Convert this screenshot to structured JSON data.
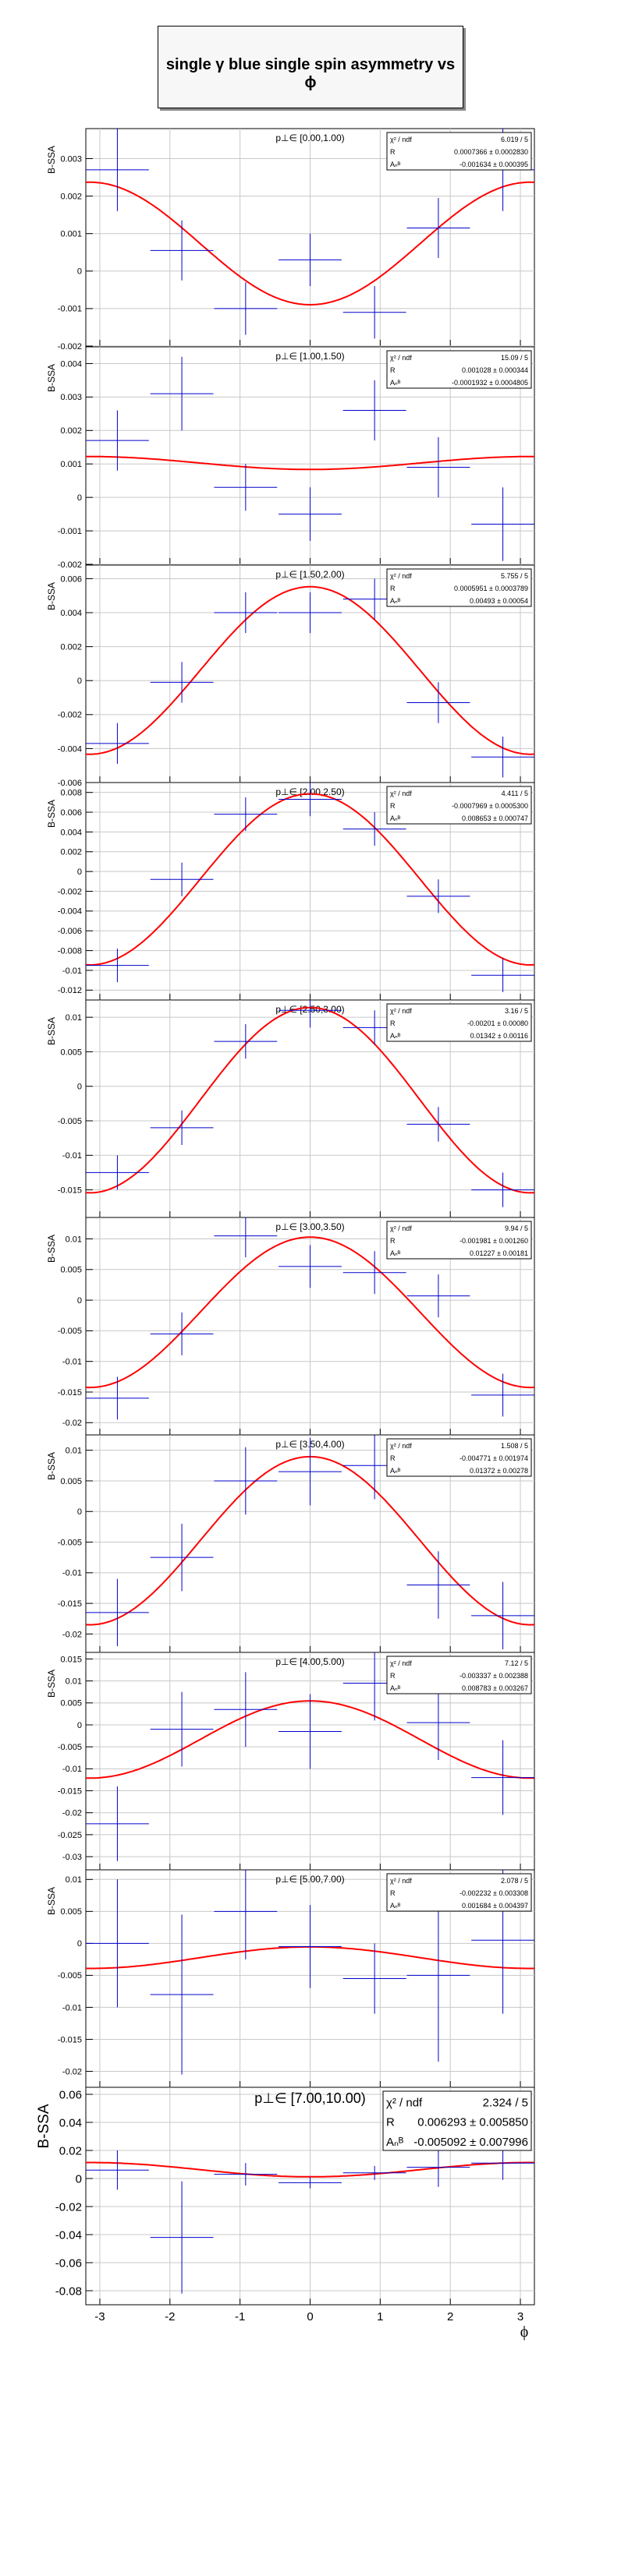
{
  "title": "single γ blue single spin asymmetry vs ϕ",
  "ylabel": "B-SSA",
  "xlabel": "ϕ",
  "stat_label_chi2": "χ² / ndf",
  "stat_label_R": "R",
  "stat_label_A": "Aₙᴮ",
  "x_ticks": [
    "-3",
    "-2",
    "-1",
    "0",
    "1",
    "2",
    "3"
  ],
  "xlim": [
    -3.2,
    3.2
  ],
  "x_centers": [
    -2.75,
    -1.83,
    -0.92,
    0.0,
    0.92,
    1.83,
    2.75
  ],
  "x_halfwidth": 0.45,
  "colors": {
    "fit": "#ff0000",
    "points": "#0000cc",
    "grid": "#c8c8c8",
    "axis": "#000000"
  },
  "chart_data": [
    {
      "type": "scatter",
      "title": "p⊥∈ [0.00,1.00)",
      "ylim": [
        -0.002,
        0.0038
      ],
      "y_ticks": [
        "-0.002",
        "-0.001",
        "0",
        "0.001",
        "0.002",
        "0.003"
      ],
      "y": [
        0.0027,
        0.00055,
        -0.001,
        0.0003,
        -0.0011,
        0.00115,
        0.0027
      ],
      "yerr": [
        0.0011,
        0.0008,
        0.0007,
        0.0007,
        0.0007,
        0.0008,
        0.0011
      ],
      "chi2_ndf": "6.019 / 5",
      "R": "0.0007366 ± 0.0002830",
      "A": "-0.001634 ± 0.000395"
    },
    {
      "type": "scatter",
      "title": "p⊥∈ [1.00,1.50)",
      "ylim": [
        -0.002,
        0.0045
      ],
      "y_ticks": [
        "-0.002",
        "-0.001",
        "0",
        "0.001",
        "0.002",
        "0.003",
        "0.004"
      ],
      "y": [
        0.0017,
        0.0031,
        0.0003,
        -0.0005,
        0.0026,
        0.0009,
        -0.0008
      ],
      "yerr": [
        0.0009,
        0.0011,
        0.0007,
        0.0008,
        0.0009,
        0.0009,
        0.0011
      ],
      "chi2_ndf": "15.09 / 5",
      "R": "0.001028 ± 0.000344",
      "A": "-0.0001932 ± 0.0004805"
    },
    {
      "type": "scatter",
      "title": "p⊥∈ [1.50,2.00)",
      "ylim": [
        -0.006,
        0.0068
      ],
      "y_ticks": [
        "-0.006",
        "-0.004",
        "-0.002",
        "0",
        "0.002",
        "0.004",
        "0.006"
      ],
      "y": [
        -0.0037,
        -0.0001,
        0.004,
        0.004,
        0.0048,
        -0.0013,
        -0.0045
      ],
      "yerr": [
        0.0012,
        0.0012,
        0.0012,
        0.0012,
        0.0012,
        0.0012,
        0.0012
      ],
      "chi2_ndf": "5.755 / 5",
      "R": "0.0005951 ± 0.0003789",
      "A": "0.00493 ± 0.00054"
    },
    {
      "type": "scatter",
      "title": "p⊥∈ [2.00,2.50)",
      "ylim": [
        -0.013,
        0.009
      ],
      "y_ticks": [
        "-0.012",
        "-0.01",
        "-0.008",
        "-0.006",
        "-0.004",
        "-0.002",
        "0",
        "0.002",
        "0.004",
        "0.006",
        "0.008"
      ],
      "y": [
        -0.0095,
        -0.0008,
        0.0058,
        0.0073,
        0.0043,
        -0.0025,
        -0.0105
      ],
      "yerr": [
        0.0017,
        0.0017,
        0.0017,
        0.0017,
        0.0017,
        0.0017,
        0.0017
      ],
      "chi2_ndf": "4.411 / 5",
      "R": "-0.0007969 ± 0.0005300",
      "A": "0.008653 ± 0.000747"
    },
    {
      "type": "scatter",
      "title": "p⊥∈ [2.50,3.00)",
      "ylim": [
        -0.019,
        0.0125
      ],
      "y_ticks": [
        "-0.015",
        "-0.01",
        "-0.005",
        "0",
        "0.005",
        "0.01"
      ],
      "y": [
        -0.0125,
        -0.006,
        0.0065,
        0.011,
        0.0085,
        -0.0055,
        -0.015
      ],
      "yerr": [
        0.0025,
        0.0025,
        0.0025,
        0.0025,
        0.0025,
        0.0025,
        0.0025
      ],
      "chi2_ndf": "3.16 / 5",
      "R": "-0.00201 ± 0.00080",
      "A": "0.01342 ± 0.00116"
    },
    {
      "type": "scatter",
      "title": "p⊥∈ [3.00,3.50)",
      "ylim": [
        -0.022,
        0.0135
      ],
      "y_ticks": [
        "-0.02",
        "-0.015",
        "-0.01",
        "-0.005",
        "0",
        "0.005",
        "0.01"
      ],
      "y": [
        -0.016,
        -0.0055,
        0.0105,
        0.0055,
        0.0045,
        0.0007,
        -0.0155
      ],
      "yerr": [
        0.0035,
        0.0035,
        0.0035,
        0.0035,
        0.0035,
        0.0035,
        0.0035
      ],
      "chi2_ndf": "9.94 / 5",
      "R": "-0.001981 ± 0.001260",
      "A": "0.01227 ± 0.00181"
    },
    {
      "type": "scatter",
      "title": "p⊥∈ [3.50,4.00)",
      "ylim": [
        -0.023,
        0.0125
      ],
      "y_ticks": [
        "-0.02",
        "-0.015",
        "-0.01",
        "-0.005",
        "0",
        "0.005",
        "0.01"
      ],
      "y": [
        -0.0165,
        -0.0075,
        0.005,
        0.0065,
        0.0075,
        -0.012,
        -0.017
      ],
      "yerr": [
        0.0055,
        0.0055,
        0.0055,
        0.0055,
        0.0055,
        0.0055,
        0.0055
      ],
      "chi2_ndf": "1.508 / 5",
      "R": "-0.004771 ± 0.001974",
      "A": "0.01372 ± 0.00278"
    },
    {
      "type": "scatter",
      "title": "p⊥∈ [4.00,5.00)",
      "ylim": [
        -0.033,
        0.0165
      ],
      "y_ticks": [
        "-0.03",
        "-0.025",
        "-0.02",
        "-0.015",
        "-0.01",
        "-0.005",
        "0",
        "0.005",
        "0.01",
        "0.015"
      ],
      "y": [
        -0.0225,
        -0.001,
        0.0035,
        -0.0015,
        0.0095,
        0.0005,
        -0.012
      ],
      "yerr": [
        0.0085,
        0.0085,
        0.0085,
        0.0085,
        0.0085,
        0.0085,
        0.0085
      ],
      "chi2_ndf": "7.12 / 5",
      "R": "-0.003337 ± 0.002388",
      "A": "0.008783 ± 0.003267"
    },
    {
      "type": "scatter",
      "title": "p⊥∈ [5.00,7.00)",
      "ylim": [
        -0.0225,
        0.0115
      ],
      "y_ticks": [
        "-0.02",
        "-0.015",
        "-0.01",
        "-0.005",
        "0",
        "0.005",
        "0.01"
      ],
      "y": [
        0.0,
        -0.008,
        0.005,
        -0.0005,
        -0.0055,
        -0.005,
        0.0005
      ],
      "yerr": [
        0.01,
        0.0125,
        0.0075,
        0.0065,
        0.0055,
        0.0135,
        0.0115
      ],
      "chi2_ndf": "2.078 / 5",
      "R": "-0.002232 ± 0.003308",
      "A": "0.001684 ± 0.004397"
    },
    {
      "type": "scatter",
      "title": "p⊥∈ [7.00,10.00)",
      "ylim": [
        -0.09,
        0.065
      ],
      "y_ticks": [
        "-0.08",
        "-0.06",
        "-0.04",
        "-0.02",
        "0",
        "0.02",
        "0.04",
        "0.06"
      ],
      "y": [
        0.006,
        -0.042,
        0.003,
        -0.003,
        0.004,
        0.008,
        0.011
      ],
      "yerr": [
        0.014,
        0.04,
        0.008,
        0.004,
        0.005,
        0.014,
        0.012
      ],
      "chi2_ndf": "2.324 / 5",
      "R": "0.006293 ± 0.005850",
      "A": "-0.005092 ± 0.007996"
    }
  ]
}
